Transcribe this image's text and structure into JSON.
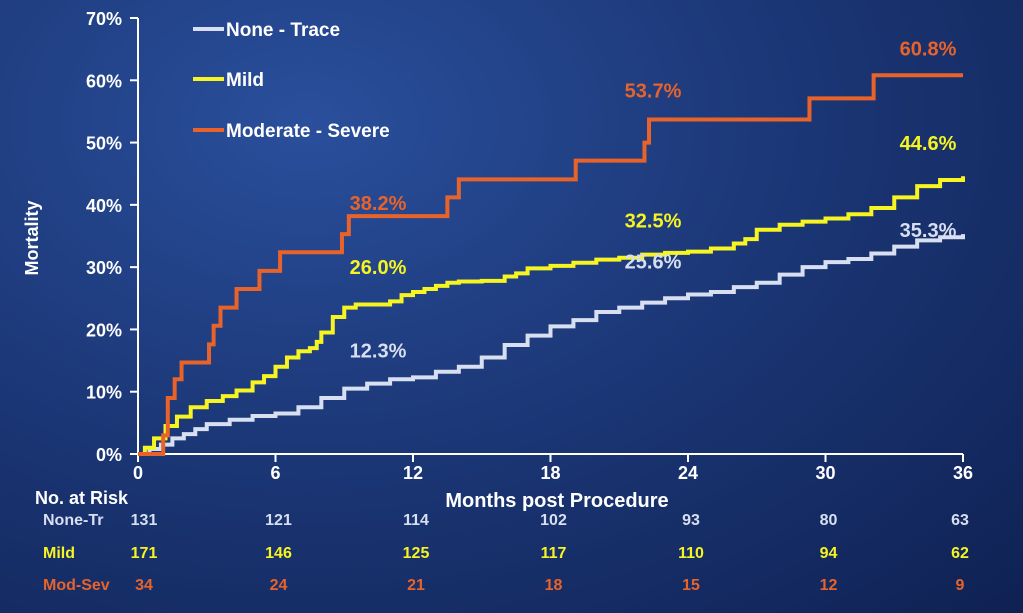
{
  "chart_data": {
    "type": "line",
    "step": true,
    "ylabel": "Mortality",
    "xlabel": "Months post Procedure",
    "xlim": [
      0,
      36
    ],
    "ylim": [
      0,
      70
    ],
    "x_ticks": [
      0,
      6,
      12,
      18,
      24,
      30,
      36
    ],
    "x_tick_labels": [
      "0",
      "6",
      "12",
      "18",
      "24",
      "30",
      "36"
    ],
    "y_ticks": [
      0,
      10,
      20,
      30,
      40,
      50,
      60,
      70
    ],
    "y_tick_labels": [
      "0%",
      "10%",
      "20%",
      "30%",
      "40%",
      "50%",
      "60%",
      "70%"
    ],
    "legend": {
      "position": "top-left"
    },
    "series": [
      {
        "name": "None - Trace",
        "color": "#d8dff0",
        "points": [
          [
            0,
            0
          ],
          [
            0.5,
            0.8
          ],
          [
            1,
            1.5
          ],
          [
            1.5,
            2.5
          ],
          [
            2,
            3.2
          ],
          [
            2.5,
            4
          ],
          [
            3,
            4.8
          ],
          [
            4,
            5.5
          ],
          [
            5,
            6.1
          ],
          [
            6,
            6.5
          ],
          [
            7,
            7.5
          ],
          [
            8,
            9
          ],
          [
            9,
            10.5
          ],
          [
            10,
            11.3
          ],
          [
            11,
            12
          ],
          [
            12,
            12.3
          ],
          [
            13,
            13.2
          ],
          [
            14,
            14
          ],
          [
            15,
            15.5
          ],
          [
            16,
            17.5
          ],
          [
            17,
            19
          ],
          [
            18,
            20.5
          ],
          [
            19,
            21.5
          ],
          [
            20,
            22.8
          ],
          [
            21,
            23.5
          ],
          [
            22,
            24.3
          ],
          [
            23,
            25
          ],
          [
            24,
            25.6
          ],
          [
            25,
            26
          ],
          [
            26,
            26.8
          ],
          [
            27,
            27.5
          ],
          [
            28,
            28.8
          ],
          [
            29,
            30
          ],
          [
            30,
            30.8
          ],
          [
            31,
            31.3
          ],
          [
            32,
            32.2
          ],
          [
            33,
            33.3
          ],
          [
            34,
            34.3
          ],
          [
            35,
            34.8
          ],
          [
            36,
            35.3
          ]
        ],
        "labels": [
          {
            "x": 12,
            "y": 12.3,
            "text": "12.3%",
            "dx": -35,
            "dy": -20
          },
          {
            "x": 24,
            "y": 25.6,
            "text": "25.6%",
            "dx": -35,
            "dy": -26
          },
          {
            "x": 36,
            "y": 35.3,
            "text": "35.3%",
            "dx": -35,
            "dy": 3
          }
        ]
      },
      {
        "name": "Mild",
        "color": "#f6f421",
        "points": [
          [
            0,
            0
          ],
          [
            0.3,
            1
          ],
          [
            0.7,
            2.5
          ],
          [
            1.2,
            4.5
          ],
          [
            1.7,
            6
          ],
          [
            2.3,
            7.5
          ],
          [
            3,
            8.5
          ],
          [
            3.7,
            9.3
          ],
          [
            4.3,
            10.2
          ],
          [
            5,
            11.5
          ],
          [
            5.5,
            12.5
          ],
          [
            6,
            14
          ],
          [
            6.5,
            15.5
          ],
          [
            7,
            16.5
          ],
          [
            7.5,
            17
          ],
          [
            7.8,
            18
          ],
          [
            8,
            19.5
          ],
          [
            8.5,
            22
          ],
          [
            9,
            23.5
          ],
          [
            9.5,
            24
          ],
          [
            10,
            24
          ],
          [
            11,
            24.5
          ],
          [
            11.5,
            25.5
          ],
          [
            12,
            26
          ],
          [
            12.5,
            26.5
          ],
          [
            13,
            27
          ],
          [
            13.5,
            27.5
          ],
          [
            14,
            27.7
          ],
          [
            15,
            27.8
          ],
          [
            16,
            28.5
          ],
          [
            16.5,
            29
          ],
          [
            17,
            29.8
          ],
          [
            18,
            30.2
          ],
          [
            19,
            30.7
          ],
          [
            20,
            31.2
          ],
          [
            21,
            31.5
          ],
          [
            22,
            32
          ],
          [
            23,
            32.3
          ],
          [
            24,
            32.5
          ],
          [
            25,
            33
          ],
          [
            26,
            33.8
          ],
          [
            26.5,
            34.5
          ],
          [
            27,
            36
          ],
          [
            28,
            36.8
          ],
          [
            29,
            37.3
          ],
          [
            30,
            37.8
          ],
          [
            31,
            38.5
          ],
          [
            32,
            39.5
          ],
          [
            33,
            41.2
          ],
          [
            34,
            43
          ],
          [
            35,
            44
          ],
          [
            36,
            44.6
          ]
        ],
        "labels": [
          {
            "x": 12,
            "y": 26.0,
            "text": "26.0%",
            "dx": -35,
            "dy": -18
          },
          {
            "x": 24,
            "y": 32.5,
            "text": "32.5%",
            "dx": -35,
            "dy": -24
          },
          {
            "x": 36,
            "y": 44.6,
            "text": "44.6%",
            "dx": -35,
            "dy": -26
          }
        ]
      },
      {
        "name": "Moderate - Severe",
        "color": "#e8632a",
        "points": [
          [
            0,
            0
          ],
          [
            1,
            0
          ],
          [
            1.1,
            3
          ],
          [
            1.3,
            9
          ],
          [
            1.6,
            12
          ],
          [
            1.9,
            14.7
          ],
          [
            3,
            14.7
          ],
          [
            3.1,
            17.6
          ],
          [
            3.3,
            20.6
          ],
          [
            3.6,
            23.5
          ],
          [
            4.3,
            26.5
          ],
          [
            5.3,
            29.4
          ],
          [
            6.2,
            32.4
          ],
          [
            8.8,
            32.4
          ],
          [
            8.9,
            35.3
          ],
          [
            9.2,
            38.2
          ],
          [
            13.4,
            38.2
          ],
          [
            13.5,
            41.2
          ],
          [
            14,
            44.1
          ],
          [
            19,
            44.1
          ],
          [
            19.1,
            47.1
          ],
          [
            22,
            47.1
          ],
          [
            22.1,
            50
          ],
          [
            22.3,
            53.7
          ],
          [
            29.2,
            53.7
          ],
          [
            29.3,
            57.1
          ],
          [
            32,
            57.1
          ],
          [
            32.1,
            60.8
          ],
          [
            36,
            60.8
          ]
        ],
        "labels": [
          {
            "x": 12,
            "y": 38.2,
            "text": "38.2%",
            "dx": -35,
            "dy": -6
          },
          {
            "x": 24,
            "y": 53.7,
            "text": "53.7%",
            "dx": -35,
            "dy": -22
          },
          {
            "x": 36,
            "y": 60.8,
            "text": "60.8%",
            "dx": -35,
            "dy": -20
          }
        ]
      }
    ]
  },
  "risk_table": {
    "title": "No. at Risk",
    "rows": [
      {
        "label": "None-Tr",
        "color": "#d8dff0",
        "values": [
          "131",
          "121",
          "114",
          "102",
          "93",
          "80",
          "63"
        ]
      },
      {
        "label": "Mild",
        "color": "#f6f421",
        "values": [
          "171",
          "146",
          "125",
          "117",
          "110",
          "94",
          "62"
        ]
      },
      {
        "label": "Mod-Sev",
        "color": "#e8632a",
        "values": [
          "34",
          "24",
          "21",
          "18",
          "15",
          "12",
          "9"
        ]
      }
    ]
  }
}
